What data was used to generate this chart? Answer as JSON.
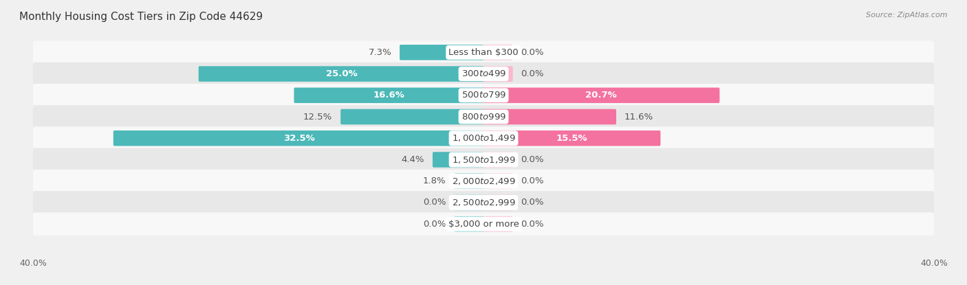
{
  "title": "Monthly Housing Cost Tiers in Zip Code 44629",
  "source": "Source: ZipAtlas.com",
  "categories": [
    "Less than $300",
    "$300 to $499",
    "$500 to $799",
    "$800 to $999",
    "$1,000 to $1,499",
    "$1,500 to $1,999",
    "$2,000 to $2,499",
    "$2,500 to $2,999",
    "$3,000 or more"
  ],
  "owner_values": [
    7.3,
    25.0,
    16.6,
    12.5,
    32.5,
    4.4,
    1.8,
    0.0,
    0.0
  ],
  "renter_values": [
    0.0,
    0.0,
    20.7,
    11.6,
    15.5,
    0.0,
    0.0,
    0.0,
    0.0
  ],
  "owner_color": "#4cb8b8",
  "owner_color_light": "#7fd4d4",
  "renter_color": "#f472a0",
  "renter_color_light": "#f9b8d0",
  "axis_max": 40.0,
  "min_bar": 2.5,
  "background_color": "#f0f0f0",
  "row_bg_even": "#f8f8f8",
  "row_bg_odd": "#e8e8e8",
  "label_fontsize": 9.5,
  "title_fontsize": 11,
  "legend_fontsize": 9,
  "source_fontsize": 8
}
